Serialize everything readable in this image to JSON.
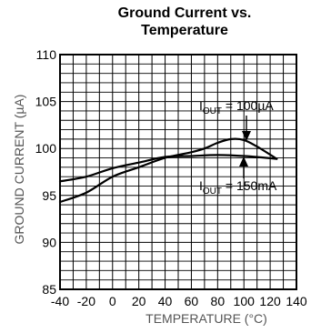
{
  "chart_data": {
    "type": "line",
    "title_line1": "Ground Current vs.",
    "title_line2": "Temperature",
    "xlabel": "TEMPERATURE (°C)",
    "ylabel": "GROUND CURRENT (µA)",
    "xlim": [
      -40,
      140
    ],
    "ylim": [
      85,
      110
    ],
    "grid": true,
    "xticks": [
      -40,
      -20,
      0,
      20,
      40,
      60,
      80,
      100,
      120,
      140
    ],
    "xtick_labels": [
      "-40",
      "-20",
      "0",
      "20",
      "40",
      "60",
      "80",
      "100",
      "120",
      "140"
    ],
    "yticks": [
      85,
      90,
      95,
      100,
      105,
      110
    ],
    "ytick_labels": [
      "85",
      "90",
      "95",
      "100",
      "105",
      "110"
    ],
    "series": [
      {
        "name": "I_OUT = 100µA",
        "x": [
          -40,
          -20,
          0,
          20,
          40,
          60,
          70,
          80,
          90,
          100,
          110,
          125
        ],
        "y": [
          94.3,
          95.3,
          97.0,
          98.0,
          99.0,
          99.6,
          100.0,
          100.6,
          101.0,
          100.9,
          100.2,
          98.9
        ]
      },
      {
        "name": "I_OUT = 150mA",
        "x": [
          -40,
          -20,
          0,
          20,
          40,
          60,
          80,
          100,
          125
        ],
        "y": [
          96.5,
          97.0,
          97.9,
          98.5,
          99.1,
          99.2,
          99.3,
          99.2,
          98.9
        ]
      }
    ],
    "annotations": [
      {
        "prefix": "I",
        "sub": "OUT",
        "suffix": " = 100µA"
      },
      {
        "prefix": "I",
        "sub": "OUT",
        "suffix": " = 150mA"
      }
    ]
  }
}
